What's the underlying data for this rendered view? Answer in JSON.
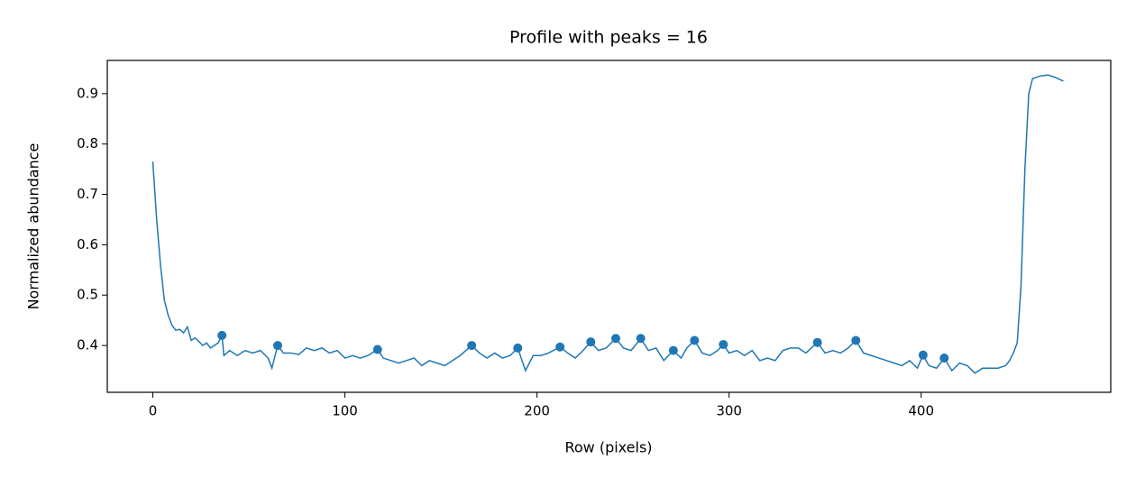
{
  "chart_data": {
    "type": "line",
    "title": "Profile with peaks = 16",
    "xlabel": "Row (pixels)",
    "ylabel": "Normalized abundance",
    "xlim": [
      -23.7,
      498.7
    ],
    "ylim": [
      0.307,
      0.966
    ],
    "xticks": [
      0,
      100,
      200,
      300,
      400
    ],
    "yticks": [
      0.4,
      0.5,
      0.6,
      0.7,
      0.8,
      0.9
    ],
    "color": "#1f77b4",
    "x": [
      0,
      2,
      4,
      6,
      8,
      10,
      12,
      14,
      16,
      18,
      20,
      22,
      24,
      26,
      28,
      30,
      32,
      34,
      36,
      37,
      40,
      44,
      48,
      52,
      56,
      60,
      62,
      65,
      68,
      72,
      76,
      80,
      84,
      88,
      92,
      96,
      100,
      104,
      108,
      112,
      117,
      120,
      124,
      128,
      132,
      136,
      140,
      144,
      148,
      152,
      156,
      160,
      166,
      170,
      174,
      178,
      182,
      186,
      190,
      194,
      198,
      202,
      206,
      212,
      216,
      220,
      224,
      228,
      232,
      236,
      241,
      245,
      249,
      254,
      258,
      262,
      266,
      271,
      275,
      278,
      282,
      286,
      290,
      294,
      297,
      300,
      304,
      308,
      312,
      316,
      320,
      324,
      328,
      332,
      336,
      340,
      346,
      350,
      354,
      358,
      362,
      366,
      370,
      374,
      378,
      382,
      386,
      390,
      394,
      398,
      401,
      404,
      408,
      412,
      416,
      420,
      424,
      428,
      432,
      436,
      440,
      444,
      446,
      448,
      450,
      452,
      454,
      456,
      458,
      462,
      466,
      470,
      474
    ],
    "values": [
      0.765,
      0.65,
      0.56,
      0.49,
      0.46,
      0.44,
      0.43,
      0.432,
      0.425,
      0.437,
      0.41,
      0.415,
      0.408,
      0.4,
      0.405,
      0.395,
      0.4,
      0.405,
      0.42,
      0.38,
      0.39,
      0.38,
      0.39,
      0.385,
      0.39,
      0.375,
      0.355,
      0.4,
      0.385,
      0.385,
      0.382,
      0.395,
      0.39,
      0.395,
      0.385,
      0.39,
      0.375,
      0.38,
      0.375,
      0.38,
      0.392,
      0.375,
      0.37,
      0.365,
      0.37,
      0.375,
      0.36,
      0.37,
      0.365,
      0.36,
      0.37,
      0.38,
      0.4,
      0.385,
      0.375,
      0.385,
      0.375,
      0.38,
      0.395,
      0.35,
      0.38,
      0.38,
      0.385,
      0.397,
      0.385,
      0.375,
      0.39,
      0.407,
      0.39,
      0.395,
      0.414,
      0.395,
      0.39,
      0.414,
      0.39,
      0.395,
      0.37,
      0.39,
      0.375,
      0.395,
      0.41,
      0.385,
      0.38,
      0.39,
      0.402,
      0.385,
      0.39,
      0.38,
      0.39,
      0.37,
      0.375,
      0.37,
      0.39,
      0.395,
      0.395,
      0.385,
      0.406,
      0.385,
      0.39,
      0.385,
      0.395,
      0.41,
      0.385,
      0.38,
      0.375,
      0.37,
      0.365,
      0.36,
      0.37,
      0.355,
      0.381,
      0.36,
      0.355,
      0.375,
      0.35,
      0.365,
      0.36,
      0.345,
      0.355,
      0.355,
      0.355,
      0.36,
      0.37,
      0.385,
      0.405,
      0.52,
      0.75,
      0.9,
      0.93,
      0.935,
      0.937,
      0.932,
      0.925
    ],
    "peaks": {
      "x": [
        36,
        65,
        117,
        166,
        190,
        212,
        228,
        241,
        254,
        271,
        282,
        297,
        346,
        366,
        401,
        412
      ],
      "values": [
        0.42,
        0.4,
        0.392,
        0.4,
        0.395,
        0.397,
        0.407,
        0.414,
        0.414,
        0.39,
        0.41,
        0.402,
        0.406,
        0.41,
        0.381,
        0.375
      ]
    }
  }
}
